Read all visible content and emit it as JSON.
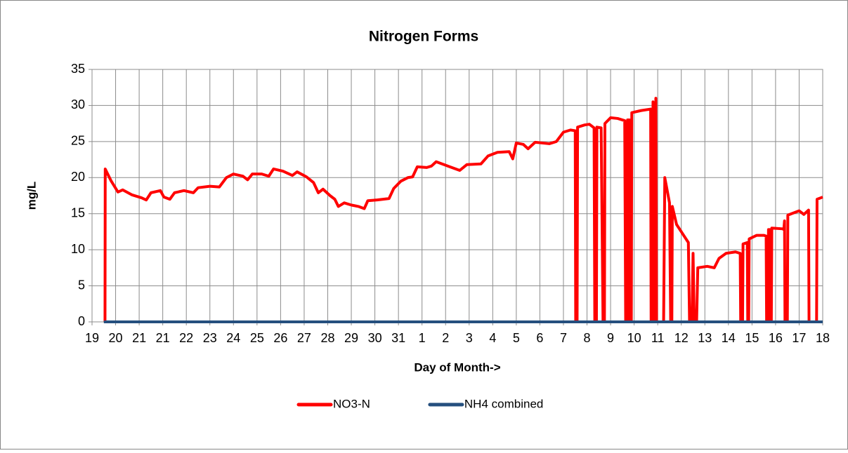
{
  "chart_data": {
    "type": "line",
    "title": "Nitrogen Forms",
    "x_label": "Day of Month->",
    "y_label": "mg/L",
    "xlim": [
      0,
      31
    ],
    "ylim": [
      0,
      35
    ],
    "yticks": [
      0,
      5,
      10,
      15,
      20,
      25,
      30,
      35
    ],
    "xticks": [
      {
        "value": 0,
        "label": "19"
      },
      {
        "value": 1,
        "label": "20"
      },
      {
        "value": 2,
        "label": "21"
      },
      {
        "value": 3,
        "label": "21"
      },
      {
        "value": 4,
        "label": "22"
      },
      {
        "value": 5,
        "label": "23"
      },
      {
        "value": 6,
        "label": "24"
      },
      {
        "value": 7,
        "label": "25"
      },
      {
        "value": 8,
        "label": "26"
      },
      {
        "value": 9,
        "label": "27"
      },
      {
        "value": 10,
        "label": "28"
      },
      {
        "value": 11,
        "label": "29"
      },
      {
        "value": 12,
        "label": "30"
      },
      {
        "value": 13,
        "label": "31"
      },
      {
        "value": 14,
        "label": "1"
      },
      {
        "value": 15,
        "label": "2"
      },
      {
        "value": 16,
        "label": "3"
      },
      {
        "value": 17,
        "label": "4"
      },
      {
        "value": 18,
        "label": "5"
      },
      {
        "value": 19,
        "label": "6"
      },
      {
        "value": 20,
        "label": "7"
      },
      {
        "value": 21,
        "label": "8"
      },
      {
        "value": 22,
        "label": "9"
      },
      {
        "value": 23,
        "label": "10"
      },
      {
        "value": 24,
        "label": "11"
      },
      {
        "value": 25,
        "label": "12"
      },
      {
        "value": 26,
        "label": "13"
      },
      {
        "value": 27,
        "label": "14"
      },
      {
        "value": 28,
        "label": "15"
      },
      {
        "value": 29,
        "label": "16"
      },
      {
        "value": 30,
        "label": "17"
      },
      {
        "value": 31,
        "label": "18"
      }
    ],
    "grid": true,
    "legend": "bottom",
    "series": [
      {
        "name": "NO3-N",
        "color": "#ff0000",
        "x": [
          0.55,
          0.56,
          0.8,
          1.1,
          1.3,
          1.7,
          2.1,
          2.3,
          2.5,
          2.9,
          3.05,
          3.3,
          3.5,
          3.9,
          4.3,
          4.5,
          5.0,
          5.4,
          5.7,
          6.0,
          6.4,
          6.6,
          6.8,
          7.2,
          7.5,
          7.7,
          8.1,
          8.5,
          8.7,
          9.1,
          9.4,
          9.6,
          9.8,
          10.1,
          10.3,
          10.45,
          10.7,
          11.0,
          11.3,
          11.55,
          11.7,
          12.1,
          12.6,
          12.8,
          13.1,
          13.4,
          13.6,
          13.8,
          14.2,
          14.4,
          14.6,
          15.1,
          15.6,
          15.9,
          16.5,
          16.8,
          17.2,
          17.7,
          17.85,
          18.0,
          18.3,
          18.5,
          18.8,
          19.4,
          19.7,
          20.0,
          20.3,
          20.5,
          20.52,
          20.58,
          20.6,
          20.9,
          21.1,
          21.3,
          21.33,
          21.4,
          21.42,
          21.6,
          21.68,
          21.74,
          21.76,
          22.0,
          22.3,
          22.6,
          22.64,
          22.7,
          22.72,
          22.8,
          22.82,
          22.88,
          22.9,
          23.3,
          23.7,
          23.72,
          23.78,
          23.8,
          23.84,
          23.9,
          23.92,
          23.95,
          24.25,
          24.3,
          24.5,
          24.55,
          24.6,
          24.62,
          24.8,
          25.1,
          25.3,
          25.35,
          25.45,
          25.5,
          25.55,
          25.65,
          25.7,
          26.1,
          26.4,
          26.6,
          26.9,
          27.3,
          27.5,
          27.52,
          27.6,
          27.62,
          27.8,
          27.82,
          27.86,
          27.88,
          28.2,
          28.5,
          28.6,
          28.62,
          28.68,
          28.7,
          28.75,
          28.77,
          28.82,
          28.84,
          29.3,
          29.35,
          29.38,
          29.4,
          29.5,
          29.52,
          30.0,
          30.2,
          30.4,
          30.42,
          30.74,
          30.76,
          31.0
        ],
        "values": [
          0,
          21.2,
          19.6,
          18.0,
          18.3,
          17.6,
          17.2,
          16.9,
          17.9,
          18.2,
          17.3,
          17.0,
          17.9,
          18.2,
          17.9,
          18.6,
          18.8,
          18.7,
          20.0,
          20.5,
          20.2,
          19.7,
          20.5,
          20.5,
          20.2,
          21.2,
          20.9,
          20.3,
          20.8,
          20.1,
          19.3,
          17.9,
          18.4,
          17.5,
          17.0,
          16.0,
          16.5,
          16.2,
          16.0,
          15.7,
          16.8,
          16.9,
          17.1,
          18.5,
          19.5,
          20.0,
          20.1,
          21.5,
          21.4,
          21.6,
          22.2,
          21.6,
          21.0,
          21.8,
          21.9,
          23.0,
          23.5,
          23.6,
          22.6,
          24.8,
          24.6,
          24.0,
          24.9,
          24.7,
          25.0,
          26.3,
          26.6,
          26.5,
          0,
          0,
          27.0,
          27.3,
          27.4,
          26.9,
          0,
          0,
          27.0,
          26.9,
          0,
          0,
          27.5,
          28.3,
          28.2,
          27.9,
          0,
          0,
          28.0,
          28.0,
          0,
          0,
          29.0,
          29.3,
          29.5,
          0,
          0,
          30.5,
          0,
          0,
          31.0,
          0,
          0,
          20.0,
          16.5,
          0,
          0,
          16.0,
          13.5,
          12.0,
          11.0,
          0,
          0,
          9.5,
          0,
          0,
          7.5,
          7.7,
          7.5,
          8.8,
          9.5,
          9.7,
          9.5,
          0,
          0,
          10.8,
          11.0,
          0,
          0,
          11.5,
          12.0,
          12.0,
          11.9,
          0,
          0,
          12.8,
          12.8,
          0,
          0,
          13.0,
          12.9,
          12.8,
          14.0,
          0,
          0,
          14.8,
          15.4,
          14.9,
          15.5,
          0,
          0,
          17.0,
          17.3
        ]
      },
      {
        "name": "NH4 combined",
        "color": "#254f7e",
        "x": [
          0.5,
          31
        ],
        "values": [
          0,
          0
        ]
      }
    ]
  }
}
